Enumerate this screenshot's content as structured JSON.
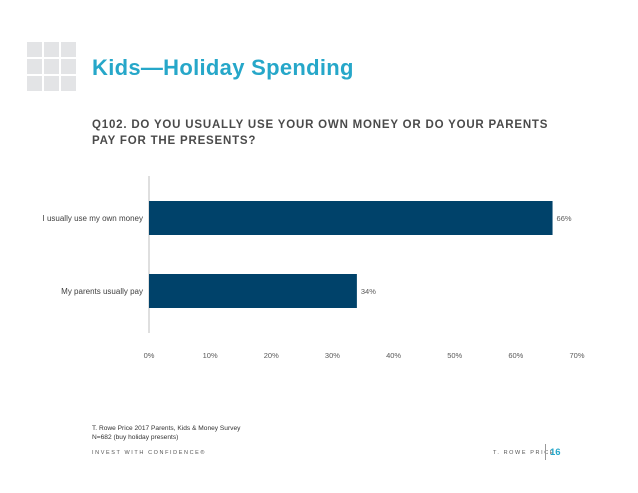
{
  "title": "Kids—Holiday Spending",
  "question": "Q102. DO YOU USUALLY USE YOUR OWN MONEY OR DO YOUR PARENTS PAY FOR THE PRESENTS?",
  "chart_data": {
    "type": "bar",
    "orientation": "horizontal",
    "categories": [
      "I usually use my own money",
      "My parents usually pay"
    ],
    "values": [
      66,
      34
    ],
    "value_labels": [
      "66%",
      "34%"
    ],
    "xlim": [
      0,
      70
    ],
    "x_ticks": [
      "0%",
      "10%",
      "20%",
      "30%",
      "40%",
      "50%",
      "60%",
      "70%"
    ],
    "grid": false,
    "bar_color": "#00426a"
  },
  "source": {
    "line1": "T. Rowe Price 2017 Parents, Kids & Money Survey",
    "line2": "N=682 (buy holiday presents)"
  },
  "footer": {
    "tagline": "INVEST WITH CONFIDENCE®",
    "brand": "T. ROWE PRICE",
    "page_number": "16"
  },
  "colors": {
    "accent": "#26a7c9",
    "bar": "#00426a"
  }
}
